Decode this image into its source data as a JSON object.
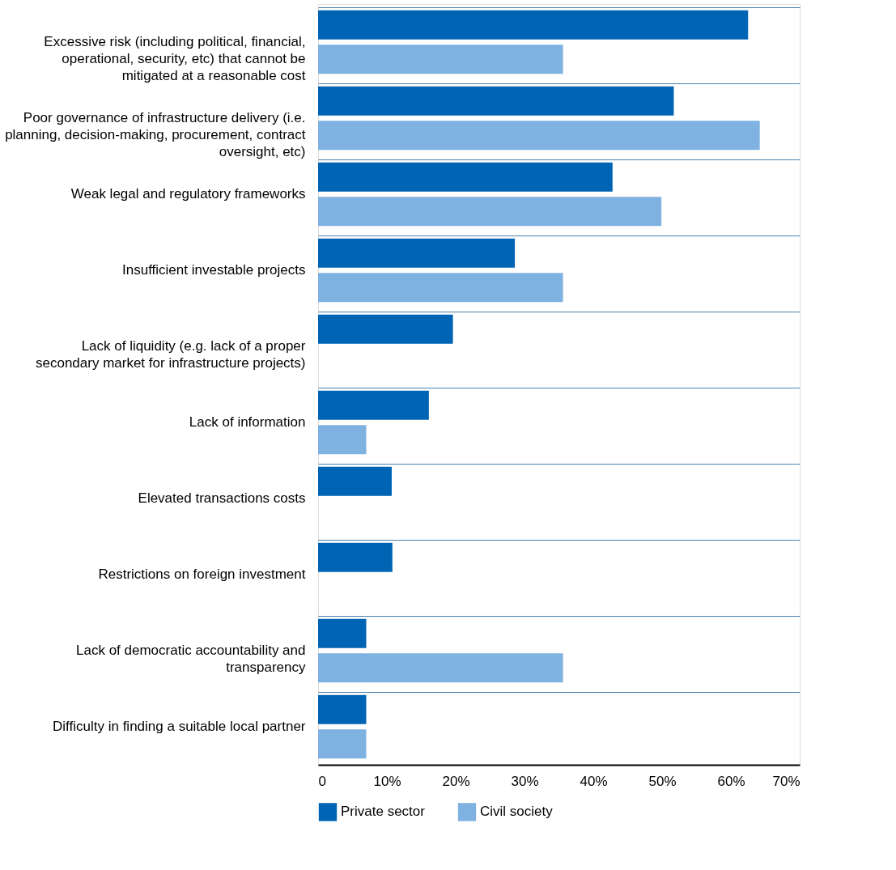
{
  "chart_data": {
    "type": "bar",
    "orientation": "horizontal",
    "categories": [
      "Excessive risk (including political, financial, operational, security, etc) that cannot be mitigated at a reasonable cost",
      "Poor governance of infrastructure delivery (i.e. planning, decision-making, procurement, contract oversight, etc)",
      "Weak legal and regulatory frameworks",
      "Insufficient investable projects",
      "Lack of liquidity (e.g. lack of a proper secondary market for infrastructure projects)",
      "Lack of information",
      "Elevated transactions costs",
      "Restrictions on foreign investment",
      "Lack of democratic accountability and transparency",
      "Difficulty in finding a suitable local partner"
    ],
    "series": [
      {
        "name": "Private sector",
        "color": "#0064b4",
        "values": [
          62.5,
          51.7,
          42.8,
          28.6,
          19.6,
          16.1,
          10.7,
          10.8,
          7.0,
          7.0
        ]
      },
      {
        "name": "Civil society",
        "color": "#7fb2e0",
        "values": [
          35.6,
          64.2,
          49.9,
          35.6,
          null,
          7.0,
          null,
          null,
          35.6,
          7.0
        ]
      }
    ],
    "xlim": [
      0,
      70
    ],
    "xticks": [
      0,
      {
        "value": 10,
        "label": "10%"
      },
      {
        "value": 20,
        "label": "20%"
      },
      {
        "value": 30,
        "label": "30%"
      },
      {
        "value": 40,
        "label": "40%"
      },
      {
        "value": 50,
        "label": "50%"
      },
      {
        "value": 60,
        "label": "60%"
      },
      {
        "value": 70,
        "label": "70%"
      }
    ],
    "grid": "y",
    "legend": "bottom"
  }
}
